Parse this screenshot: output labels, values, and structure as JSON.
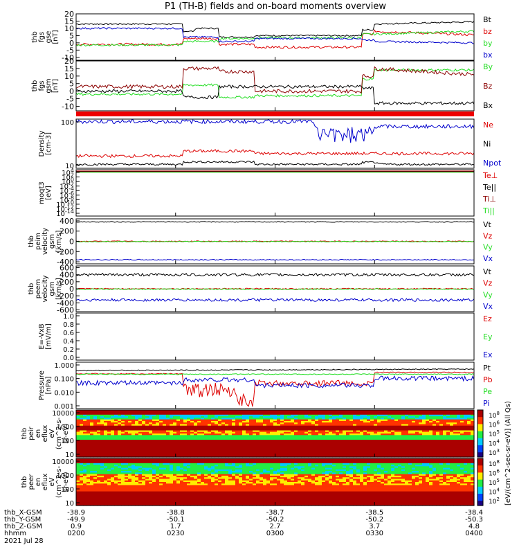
{
  "title": "P1 (TH-B) fields and on-board moments overview",
  "colors": {
    "black": "#000000",
    "red": "#dd0000",
    "green": "#22dd22",
    "blue": "#0000cc",
    "darkred": "#8b0000"
  },
  "colorbar": {
    "label": "[eV/(cm^2-sec-sr-eV)] (All Qs)",
    "panel1_ticks": [
      "10^8",
      "10^6",
      "10^5",
      "10^4",
      "10^3"
    ],
    "panel2_ticks": [
      "10^8",
      "10^6",
      "10^5",
      "10^4",
      "10^2"
    ]
  },
  "ephemeris": {
    "rows": [
      {
        "label": "thb_X-GSM",
        "values": [
          "-38.9",
          "-38.8",
          "-38.7",
          "-38.5",
          "-38.4"
        ]
      },
      {
        "label": "thb_Y-GSM",
        "values": [
          "-49.9",
          "-50.1",
          "-50.2",
          "-50.2",
          "-50.3"
        ]
      },
      {
        "label": "thb_Z-GSM",
        "values": [
          "0.9",
          "1.7",
          "2.7",
          "3.7",
          "4.8"
        ]
      },
      {
        "label": "hhmm",
        "values": [
          "0200",
          "0230",
          "0300",
          "0330",
          "0400"
        ]
      }
    ],
    "date": "2021 Jul 28"
  },
  "chart_data": [
    {
      "type": "line",
      "id": "fgs-gse",
      "ylabel": [
        "thb",
        "fgs",
        "gse",
        "[nT]"
      ],
      "ylim": [
        -12,
        20
      ],
      "yticks": [
        20,
        15,
        10,
        5,
        0,
        -5,
        -10
      ],
      "series": [
        {
          "name": "Bt",
          "color": "black"
        },
        {
          "name": "bz",
          "color": "red"
        },
        {
          "name": "by",
          "color": "green"
        },
        {
          "name": "bx",
          "color": "blue"
        }
      ]
    },
    {
      "type": "line",
      "id": "fgs-gsm",
      "ylabel": [
        "thb",
        "fgs",
        "gsm",
        "[nT]"
      ],
      "ylim": [
        -13,
        20
      ],
      "yticks": [
        20,
        15,
        10,
        5,
        0,
        -5,
        -10
      ],
      "series": [
        {
          "name": "By",
          "color": "green"
        },
        {
          "name": "Bz",
          "color": "darkred"
        },
        {
          "name": "Bx",
          "color": "black"
        }
      ]
    },
    {
      "type": "line",
      "id": "density",
      "ylabel": [
        "Density",
        "[cm-3]"
      ],
      "ytick_labels": [
        "100",
        "10"
      ],
      "series": [
        {
          "name": "Ne",
          "color": "red"
        },
        {
          "name": "Ni",
          "color": "black"
        },
        {
          "name": "Npot",
          "color": "blue"
        }
      ]
    },
    {
      "type": "line",
      "id": "temperature",
      "ylabel": [
        "moqt3",
        "[eV]"
      ],
      "ytick_labels": [
        "10^4",
        "10^2",
        "10^0",
        "10^-2",
        "10^-4",
        "10^-6",
        "10^-8",
        "10^-10",
        "10^-12",
        "10^-14"
      ],
      "series": [
        {
          "name": "Te⊥",
          "color": "red"
        },
        {
          "name": "Te||",
          "color": "black"
        },
        {
          "name": "Ti⊥",
          "color": "darkred"
        },
        {
          "name": "Ti||",
          "color": "green"
        }
      ]
    },
    {
      "type": "line",
      "id": "peim-velocity",
      "ylabel": [
        "thb",
        "peim",
        "velocity",
        "gsm",
        "[km/s]"
      ],
      "ylim": [
        -440,
        440
      ],
      "yticks": [
        400,
        200,
        0,
        -200,
        -400
      ],
      "series": [
        {
          "name": "Vt",
          "color": "black"
        },
        {
          "name": "Vz",
          "color": "red"
        },
        {
          "name": "Vy",
          "color": "green"
        },
        {
          "name": "Vx",
          "color": "blue"
        }
      ]
    },
    {
      "type": "line",
      "id": "peem-velocity",
      "ylabel": [
        "thb",
        "peem",
        "velocity",
        "gsm",
        "[km/s]"
      ],
      "ylim": [
        -650,
        650
      ],
      "yticks": [
        600,
        400,
        200,
        0,
        -200,
        -400,
        -600
      ],
      "series": [
        {
          "name": "Vt",
          "color": "black"
        },
        {
          "name": "Vz",
          "color": "red"
        },
        {
          "name": "Vy",
          "color": "green"
        },
        {
          "name": "Vx",
          "color": "blue"
        }
      ]
    },
    {
      "type": "line",
      "id": "efield",
      "ylabel": [
        "E=-VxB",
        "[mV/m]"
      ],
      "ylim": [
        0,
        1
      ],
      "ytick_labels": [
        "1.0",
        "0.8",
        "0.6",
        "0.4",
        "0.2",
        "0.0"
      ],
      "series": [
        {
          "name": "Ez",
          "color": "red"
        },
        {
          "name": "Ey",
          "color": "green"
        },
        {
          "name": "Ex",
          "color": "blue"
        }
      ]
    },
    {
      "type": "line",
      "id": "pressure",
      "ylabel": [
        "Pressure",
        "[nPa]"
      ],
      "ytick_labels": [
        "1.000",
        "0.100",
        "0.010",
        "0.001"
      ],
      "series": [
        {
          "name": "Pt",
          "color": "black"
        },
        {
          "name": "Pb",
          "color": "red"
        },
        {
          "name": "Pe",
          "color": "green"
        },
        {
          "name": "Pi",
          "color": "blue"
        }
      ]
    },
    {
      "type": "heatmap",
      "id": "peir",
      "ylabel": [
        "thb",
        "peir",
        "en",
        "eflux",
        "eV",
        "(cm^2-s-",
        "sr-eV)"
      ],
      "ytick_labels": [
        "10000",
        "1000",
        "100",
        "10"
      ]
    },
    {
      "type": "heatmap",
      "id": "peer",
      "ylabel": [
        "thb",
        "peer",
        "en",
        "eflux",
        "eV",
        "(cm^2-s-",
        "sr-eV)"
      ],
      "ytick_labels": [
        "10000",
        "1000",
        "100",
        "10"
      ]
    }
  ]
}
